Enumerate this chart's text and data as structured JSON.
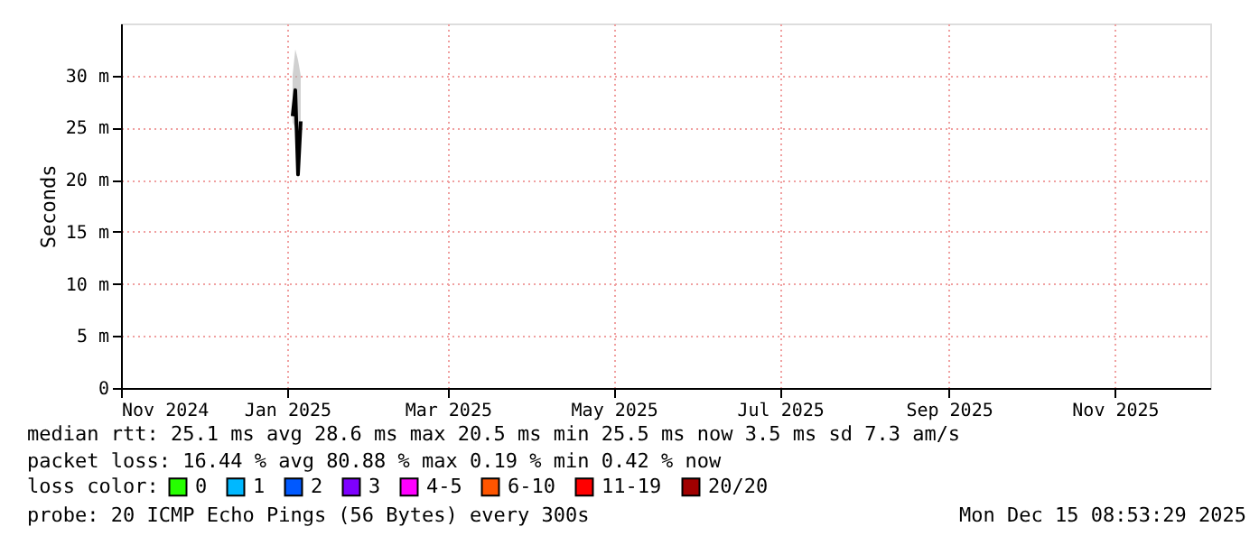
{
  "chart_data": {
    "type": "line",
    "ylabel": "Seconds",
    "x": [
      "2025-01-03",
      "2025-01-04",
      "2025-01-05",
      "2025-01-06"
    ],
    "series": [
      {
        "color": "#000000",
        "values": [
          26.1,
          28.6,
          20.5,
          25.6
        ],
        "lower": [
          25.5,
          25,
          20,
          25
        ],
        "upper": [
          30,
          32.5,
          31.5,
          30
        ]
      },
      {
        "name": "0",
        "color": "#26ff00",
        "values": [
          null,
          null,
          null,
          null
        ]
      },
      {
        "name": "1",
        "color": "#00b8ff",
        "values": [
          null,
          null,
          null,
          null
        ]
      },
      {
        "name": "2",
        "color": "#0059ff",
        "values": [
          null,
          null,
          null,
          null
        ]
      },
      {
        "name": "3",
        "color": "#7e00ff",
        "values": [
          null,
          null,
          null,
          null
        ]
      },
      {
        "name": "4-5",
        "color": "#ff00ff",
        "values": [
          null,
          null,
          null,
          null
        ]
      },
      {
        "name": "6-10",
        "color": "#ff5500",
        "values": [
          null,
          null,
          null,
          null
        ]
      },
      {
        "name": "11-19",
        "color": "#ff0000",
        "values": [
          null,
          null,
          null,
          null
        ]
      },
      {
        "name": "20/20",
        "color": "#a10000",
        "values": [
          null,
          null,
          null,
          null
        ]
      }
    ],
    "legend_title": "loss color:",
    "legend": "bottom",
    "xlim": [
      "2024-11-01",
      "2025-12-06"
    ],
    "xticks": [
      {
        "value": "2024-11-01",
        "label": "Nov 2024"
      },
      {
        "value": "2025-01-01",
        "label": "Jan 2025"
      },
      {
        "value": "2025-03-01",
        "label": "Mar 2025"
      },
      {
        "value": "2025-05-01",
        "label": "May 2025"
      },
      {
        "value": "2025-07-01",
        "label": "Jul 2025"
      },
      {
        "value": "2025-09-01",
        "label": "Sep 2025"
      },
      {
        "value": "2025-11-01",
        "label": "Nov 2025"
      }
    ],
    "ylim": [
      0,
      35
    ],
    "yticks": [
      0,
      {
        "value": 5,
        "label": "5 m"
      },
      {
        "value": 10,
        "label": "10 m"
      },
      {
        "value": 15,
        "label": "15 m"
      },
      {
        "value": 20,
        "label": "20 m"
      },
      {
        "value": 25,
        "label": "25 m"
      },
      {
        "value": 30,
        "label": "30 m"
      }
    ],
    "grid": true,
    "line_style": "solid",
    "annotations": [
      "median rtt:  25.1 ms avg  28.6 ms max  20.5 ms min  25.5 ms now  3.5 ms sd  7.3   am/s",
      "packet loss: 16.44 % avg  80.88 % max  0.19 % min  0.42 % now",
      "probe:       20 ICMP Echo Pings (56 Bytes) every 300s",
      "Mon Dec 15 08:53:29 2025"
    ]
  }
}
